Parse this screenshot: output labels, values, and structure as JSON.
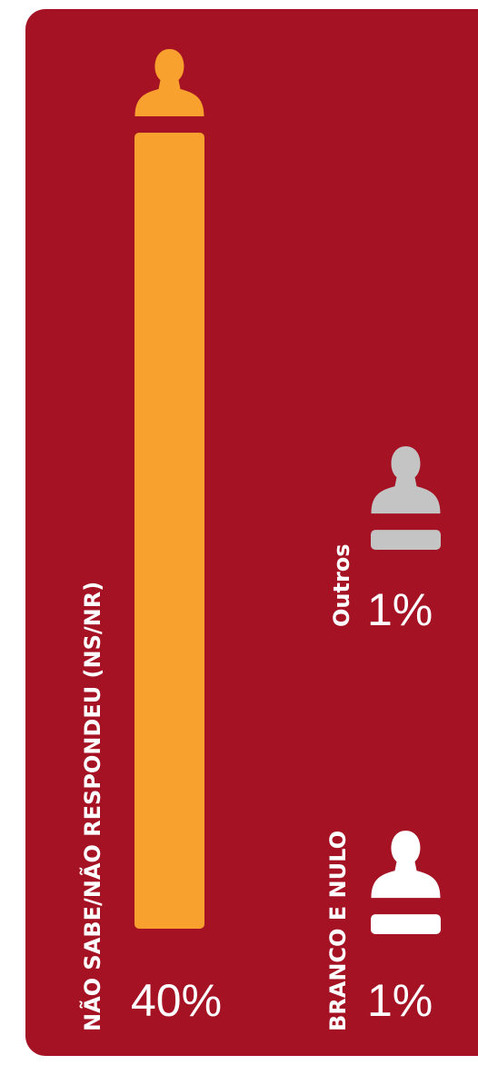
{
  "chart_data": {
    "type": "bar",
    "categories": [
      "NÃO SABE/NÃO RESPONDEU (NS/NR)",
      "Outros",
      "BRANCO E NULO"
    ],
    "values": [
      40,
      1,
      1
    ],
    "value_labels": [
      "40%",
      "1%",
      "1%"
    ],
    "colors": [
      "#f9a12e",
      "#c4c4c4",
      "#ffffff"
    ]
  }
}
